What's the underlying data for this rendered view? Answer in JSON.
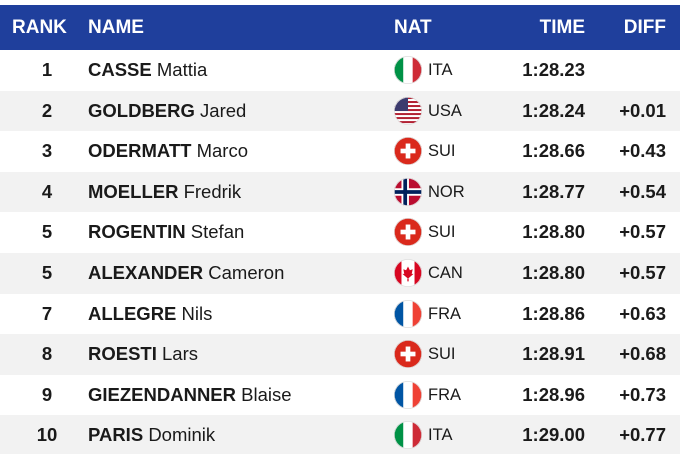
{
  "header": {
    "rank": "RANK",
    "name": "NAME",
    "nat": "NAT",
    "time": "TIME",
    "diff": "DIFF"
  },
  "rows": [
    {
      "rank": "1",
      "surname": "CASSE",
      "given": "Mattia",
      "nat": "ITA",
      "time": "1:28.23"
    },
    {
      "rank": "2",
      "surname": "GOLDBERG",
      "given": "Jared",
      "nat": "USA",
      "time": "1:28.24",
      "diff": "+0.01"
    },
    {
      "rank": "3",
      "surname": "ODERMATT",
      "given": "Marco",
      "nat": "SUI",
      "time": "1:28.66",
      "diff": "+0.43"
    },
    {
      "rank": "4",
      "surname": "MOELLER",
      "given": "Fredrik",
      "nat": "NOR",
      "time": "1:28.77",
      "diff": "+0.54"
    },
    {
      "rank": "5",
      "surname": "ROGENTIN",
      "given": "Stefan",
      "nat": "SUI",
      "time": "1:28.80",
      "diff": "+0.57"
    },
    {
      "rank": "5",
      "surname": "ALEXANDER",
      "given": "Cameron",
      "nat": "CAN",
      "time": "1:28.80",
      "diff": "+0.57"
    },
    {
      "rank": "7",
      "surname": "ALLEGRE",
      "given": "Nils",
      "nat": "FRA",
      "time": "1:28.86",
      "diff": "+0.63"
    },
    {
      "rank": "8",
      "surname": "ROESTI",
      "given": "Lars",
      "nat": "SUI",
      "time": "1:28.91",
      "diff": "+0.68"
    },
    {
      "rank": "9",
      "surname": "GIEZENDANNER",
      "given": "Blaise",
      "nat": "FRA",
      "time": "1:28.96",
      "diff": "+0.73"
    },
    {
      "rank": "10",
      "surname": "PARIS",
      "given": "Dominik",
      "nat": "ITA",
      "time": "1:29.00",
      "diff": "+0.77"
    }
  ]
}
